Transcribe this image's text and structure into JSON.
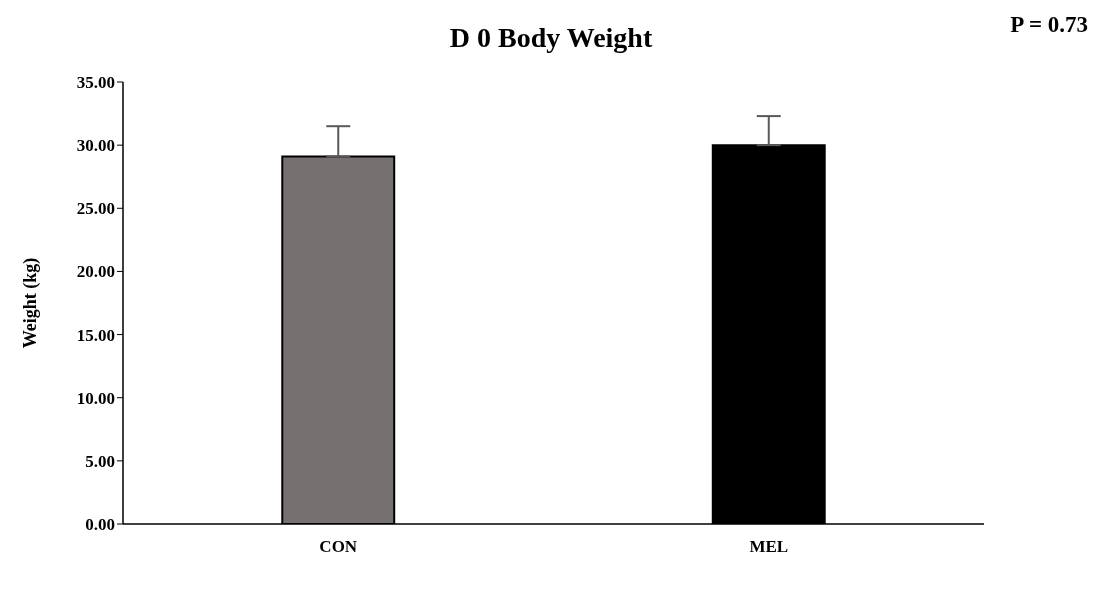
{
  "chart_data": {
    "type": "bar",
    "title": "D 0 Body Weight",
    "ylabel": "Weight (kg)",
    "annotations": [
      "P = 0.73"
    ],
    "categories": [
      "CON",
      "MEL"
    ],
    "values": [
      29.1,
      30.0
    ],
    "colors": [
      "#767171",
      "#000000"
    ],
    "errors": [
      [
        29.1,
        31.5
      ],
      [
        30.0,
        32.3
      ]
    ],
    "ylim": [
      0,
      35
    ],
    "yticks": [
      {
        "value": 0,
        "label": "0.00"
      },
      {
        "value": 5,
        "label": "5.00"
      },
      {
        "value": 10,
        "label": "10.00"
      },
      {
        "value": 15,
        "label": "15.00"
      },
      {
        "value": 20,
        "label": "20.00"
      },
      {
        "value": 25,
        "label": "25.00"
      },
      {
        "value": 30,
        "label": "30.00"
      },
      {
        "value": 35,
        "label": "35.00"
      }
    ],
    "grid": false,
    "legend": false
  }
}
